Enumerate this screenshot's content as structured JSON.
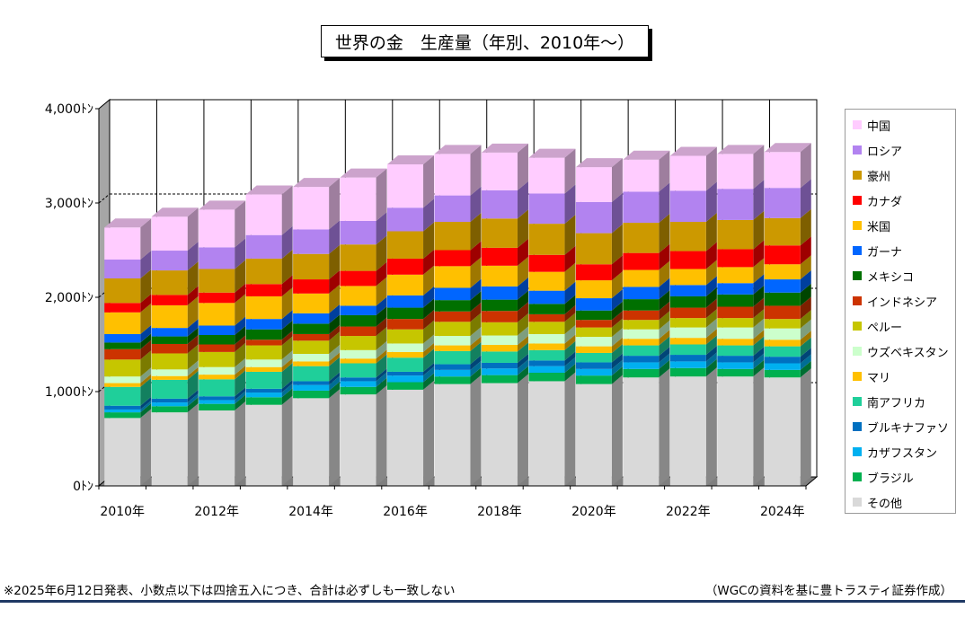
{
  "title": "世界の金　生産量（年別、2010年～）",
  "footnote": "※2025年6月12日発表、小数点以下は四捨五入につき、合計は必ずしも一致しない",
  "source": "（WGCの資料を基に豊トラスティ証券作成）",
  "chart_data": {
    "type": "bar",
    "stacked": true,
    "style": "3d",
    "title": "世界の金　生産量（年別、2010年～）",
    "xlabel": "",
    "ylabel": "",
    "ylim": [
      0,
      4000
    ],
    "y_ticks": [
      "0ﾄﾝ",
      "1,000ﾄﾝ",
      "2,000ﾄﾝ",
      "3,000ﾄﾝ",
      "4,000ﾄﾝ"
    ],
    "y_tick_values": [
      0,
      1000,
      2000,
      3000,
      4000
    ],
    "x_tick_labels": [
      "2010年",
      "2012年",
      "2014年",
      "2016年",
      "2018年",
      "2020年",
      "2022年",
      "2024年"
    ],
    "categories": [
      "2010",
      "2011",
      "2012",
      "2013",
      "2014",
      "2015",
      "2016",
      "2017",
      "2018",
      "2019",
      "2020",
      "2021",
      "2022",
      "2023",
      "2024"
    ],
    "grid": "horizontal dashed",
    "legend_position": "right",
    "series": [
      {
        "name": "その他",
        "color": "#d9d9d9",
        "values": [
          720,
          780,
          800,
          860,
          930,
          970,
          1020,
          1080,
          1090,
          1110,
          1080,
          1150,
          1160,
          1160,
          1150
        ]
      },
      {
        "name": "ブラジル",
        "color": "#00b050",
        "values": [
          60,
          65,
          70,
          80,
          80,
          80,
          80,
          80,
          85,
          90,
          90,
          90,
          90,
          80,
          80
        ]
      },
      {
        "name": "カザフスタン",
        "color": "#00b0f0",
        "values": [
          30,
          40,
          40,
          50,
          60,
          60,
          70,
          70,
          70,
          70,
          70,
          70,
          70,
          70,
          70
        ]
      },
      {
        "name": "ブルキナファソ",
        "color": "#0070c0",
        "values": [
          40,
          40,
          40,
          40,
          40,
          40,
          40,
          60,
          60,
          60,
          70,
          70,
          70,
          70,
          70
        ]
      },
      {
        "name": "南アフリカ",
        "color": "#1fcf9a",
        "values": [
          200,
          200,
          180,
          180,
          160,
          150,
          150,
          140,
          120,
          110,
          100,
          110,
          110,
          110,
          110
        ]
      },
      {
        "name": "マリ",
        "color": "#ffc000",
        "values": [
          40,
          40,
          50,
          50,
          50,
          50,
          60,
          60,
          70,
          70,
          70,
          70,
          70,
          70,
          70
        ]
      },
      {
        "name": "ウズベキスタン",
        "color": "#ccffcc",
        "values": [
          70,
          70,
          80,
          80,
          80,
          90,
          90,
          100,
          100,
          100,
          100,
          100,
          110,
          120,
          120
        ]
      },
      {
        "name": "ペルー",
        "color": "#c6c600",
        "values": [
          180,
          170,
          160,
          150,
          140,
          150,
          150,
          150,
          140,
          130,
          100,
          100,
          100,
          100,
          100
        ]
      },
      {
        "name": "インドネシア",
        "color": "#cc3300",
        "values": [
          110,
          100,
          80,
          60,
          70,
          100,
          110,
          110,
          120,
          80,
          80,
          100,
          110,
          120,
          140
        ]
      },
      {
        "name": "メキシコ",
        "color": "#007000",
        "values": [
          70,
          80,
          100,
          110,
          110,
          120,
          120,
          120,
          120,
          110,
          100,
          120,
          120,
          130,
          140
        ]
      },
      {
        "name": "ガーナ",
        "color": "#0066ff",
        "values": [
          90,
          90,
          100,
          110,
          110,
          100,
          130,
          130,
          140,
          140,
          130,
          130,
          120,
          120,
          140
        ]
      },
      {
        "name": "米国",
        "color": "#ffc000",
        "values": [
          230,
          240,
          240,
          240,
          210,
          210,
          220,
          230,
          220,
          200,
          190,
          180,
          170,
          170,
          160
        ]
      },
      {
        "name": "カナダ",
        "color": "#ff0000",
        "values": [
          100,
          110,
          110,
          130,
          150,
          160,
          170,
          170,
          190,
          180,
          170,
          180,
          190,
          190,
          200
        ]
      },
      {
        "name": "豪州",
        "color": "#cc9900",
        "values": [
          260,
          260,
          250,
          270,
          270,
          280,
          290,
          300,
          310,
          330,
          330,
          320,
          310,
          310,
          290
        ]
      },
      {
        "name": "ロシア",
        "color": "#b283f0",
        "values": [
          200,
          210,
          230,
          250,
          260,
          250,
          250,
          280,
          300,
          320,
          330,
          330,
          330,
          330,
          320
        ]
      },
      {
        "name": "中国",
        "color": "#ffccff",
        "values": [
          340,
          360,
          400,
          430,
          450,
          460,
          460,
          440,
          400,
          380,
          370,
          340,
          370,
          370,
          380
        ]
      }
    ]
  }
}
